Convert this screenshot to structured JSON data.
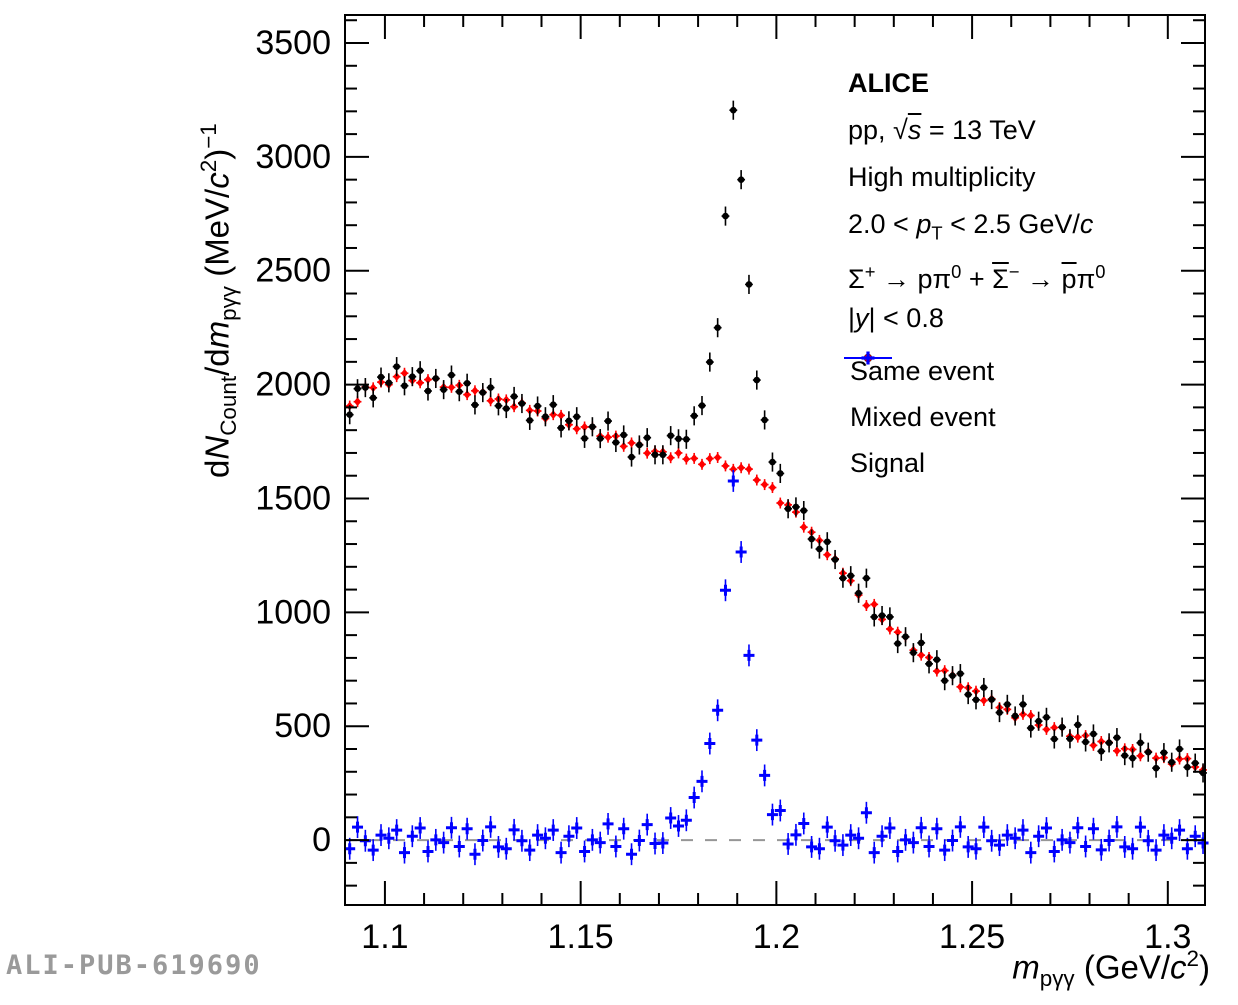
{
  "watermark": "ALI-PUB-619690",
  "annotation": {
    "lines": [
      {
        "text": "ALICE",
        "segs": [
          {
            "t": "ALICE",
            "b": 1
          }
        ]
      },
      {
        "text": "pp, √s = 13 TeV",
        "segs": [
          {
            "t": "pp, "
          },
          {
            "t": "√"
          },
          {
            "t": "s",
            "i": 1,
            "bar": 1
          },
          {
            "t": " = 13 TeV"
          }
        ]
      },
      {
        "text": "High multiplicity",
        "segs": [
          {
            "t": "High multiplicity"
          }
        ]
      },
      {
        "text": "2.0 < pT < 2.5 GeV/c",
        "segs": [
          {
            "t": "2.0 < "
          },
          {
            "t": "p",
            "i": 1
          },
          {
            "t": "T",
            "sub": 1
          },
          {
            "t": " < 2.5 GeV/"
          },
          {
            "t": "c",
            "i": 1
          }
        ]
      },
      {
        "text": "Σ+ → pπ0 + Σ̄− → p̄π0",
        "segs": [
          {
            "t": "Σ"
          },
          {
            "t": "+",
            "sup": 1
          },
          {
            "t": " → pπ"
          },
          {
            "t": "0",
            "sup": 1
          },
          {
            "t": " + "
          },
          {
            "t": "Σ",
            "bar": 1
          },
          {
            "t": "−",
            "sup": 1
          },
          {
            "t": " → "
          },
          {
            "t": "p",
            "bar": 1
          },
          {
            "t": "π"
          },
          {
            "t": "0",
            "sup": 1
          }
        ]
      },
      {
        "text": "|y| < 0.8",
        "segs": [
          {
            "t": "|"
          },
          {
            "t": "y",
            "i": 1
          },
          {
            "t": "| < 0.8"
          }
        ]
      }
    ]
  },
  "legend": {
    "items": [
      {
        "label": "Same event",
        "series_key": "same"
      },
      {
        "label": "Mixed event",
        "series_key": "mixed"
      },
      {
        "label": "Signal",
        "series_key": "signal"
      }
    ]
  },
  "chart_data": {
    "type": "scatter",
    "title": "",
    "xlabel": "m_pγγ (GeV/c²)",
    "ylabel": "dN_Count/dm_pγγ (MeV/c²)⁻¹",
    "xlabel_segs": [
      {
        "t": "m",
        "i": 1
      },
      {
        "t": "pγγ",
        "sub": 1
      },
      {
        "t": " (GeV/"
      },
      {
        "t": "c",
        "i": 1
      },
      {
        "t": "2",
        "sup": 1
      },
      {
        "t": ")"
      }
    ],
    "ylabel_segs": [
      {
        "t": "d"
      },
      {
        "t": "N",
        "i": 1
      },
      {
        "t": "Count",
        "sub": 1
      },
      {
        "t": "/d"
      },
      {
        "t": "m",
        "i": 1
      },
      {
        "t": "pγγ",
        "sub": 1
      },
      {
        "t": " (MeV/"
      },
      {
        "t": "c",
        "i": 1
      },
      {
        "t": "2",
        "sup": 1
      },
      {
        "t": ")"
      },
      {
        "t": "−1",
        "sup": 1
      }
    ],
    "xlim": [
      1.0898,
      1.3095
    ],
    "ylim": [
      -285,
      3623
    ],
    "x_ticks": [
      1.1,
      1.15,
      1.2,
      1.25,
      1.3
    ],
    "x_tick_labels": [
      "1.1",
      "1.15",
      "1.2",
      "1.25",
      "1.3"
    ],
    "x_minor_step": 0.01,
    "y_ticks": [
      0,
      500,
      1000,
      1500,
      2000,
      2500,
      3000,
      3500
    ],
    "y_tick_labels": [
      "0",
      "500",
      "1000",
      "1500",
      "2000",
      "2500",
      "3000",
      "3500"
    ],
    "y_minor_step": 100,
    "grid": false,
    "zero_line": {
      "y": 0,
      "color": "#969696",
      "dash": "12 12"
    },
    "legend_position": "upper-right-inside",
    "x_start": 1.091,
    "x_step": 0.002,
    "series": [
      {
        "key": "mixed",
        "name": "Mixed event",
        "color": "#ff0000",
        "marker": "diamond",
        "yerr": 24,
        "xerr": 0.001,
        "values": [
          1906,
          1925,
          1990,
          1986,
          2011,
          2000,
          2035,
          2050,
          2018,
          2008,
          2022,
          2026,
          1989,
          1988,
          1997,
          1956,
          1973,
          1967,
          1929,
          1937,
          1933,
          1903,
          1920,
          1887,
          1884,
          1851,
          1868,
          1865,
          1824,
          1806,
          1814,
          1814,
          1774,
          1769,
          1774,
          1729,
          1744,
          1737,
          1699,
          1707,
          1705,
          1679,
          1700,
          1673,
          1676,
          1650,
          1675,
          1680,
          1643,
          1628,
          1635,
          1629,
          1581,
          1561,
          1548,
          1480,
          1472,
          1440,
          1374,
          1352,
          1316,
          1253,
          1235,
          1172,
          1139,
          1076,
          1030,
          1035,
          969,
          927,
          913,
          892,
          834,
          812,
          802,
          742,
          744,
          724,
          673,
          669,
          654,
          613,
          620,
          582,
          574,
          537,
          552,
          547,
          505,
          486,
          494,
          495,
          456,
          452,
          459,
          416,
          433,
          429,
          392,
          401,
          398,
          370,
          389,
          360,
          362,
          334,
          356,
          358,
          321,
          308
        ]
      },
      {
        "key": "same",
        "name": "Same event",
        "color": "#000000",
        "marker": "circle",
        "yerr": 42,
        "xerr": 0.001,
        "values": [
          1868,
          1982,
          1987,
          1942,
          2033,
          2008,
          2079,
          1995,
          2035,
          2061,
          1972,
          2027,
          1978,
          2042,
          1969,
          2006,
          1911,
          1965,
          1987,
          1907,
          1895,
          1948,
          1917,
          1843,
          1906,
          1859,
          1912,
          1810,
          1841,
          1859,
          1764,
          1815,
          1763,
          1840,
          1746,
          1779,
          1682,
          1735,
          1767,
          1692,
          1692,
          1776,
          1762,
          1760,
          1863,
          1908,
          2099,
          2250,
          2740,
          3205,
          2900,
          2440,
          2020,
          1845,
          1660,
          1610,
          1455,
          1463,
          1447,
          1322,
          1278,
          1310,
          1232,
          1150,
          1161,
          1084,
          1150,
          980,
          986,
          980,
          863,
          893,
          823,
          866,
          774,
          792,
          700,
          722,
          731,
          639,
          616,
          670,
          617,
          560,
          596,
          545,
          596,
          492,
          522,
          539,
          444,
          496,
          445,
          506,
          431,
          466,
          390,
          427,
          450,
          371,
          360,
          427,
          386,
          316,
          384,
          342,
          400,
          320,
          338,
          295
        ]
      },
      {
        "key": "signal",
        "name": "Signal",
        "color": "#0000ff",
        "marker": "plus",
        "yerr": 48,
        "xerr": 0.001,
        "values": [
          -38,
          57,
          -3,
          -44,
          22,
          8,
          44,
          -55,
          17,
          53,
          -50,
          1,
          -11,
          54,
          -28,
          50,
          -62,
          -2,
          58,
          -30,
          -38,
          45,
          -3,
          -44,
          22,
          8,
          44,
          -55,
          17,
          53,
          -50,
          1,
          -11,
          71,
          -28,
          50,
          -62,
          -2,
          68,
          -15,
          -13,
          97,
          62,
          87,
          187,
          258,
          424,
          570,
          1097,
          1577,
          1265,
          811,
          439,
          284,
          112,
          130,
          -17,
          23,
          73,
          -30,
          -38,
          57,
          -3,
          -22,
          22,
          8,
          120,
          -55,
          17,
          53,
          -50,
          1,
          -11,
          54,
          -28,
          50,
          -44,
          -2,
          58,
          -30,
          -38,
          57,
          -3,
          -22,
          22,
          8,
          44,
          -55,
          17,
          53,
          -50,
          1,
          -11,
          54,
          -28,
          50,
          -43,
          -2,
          58,
          -30,
          -38,
          57,
          -3,
          -44,
          22,
          8,
          44,
          -38,
          17,
          -13
        ]
      }
    ]
  }
}
